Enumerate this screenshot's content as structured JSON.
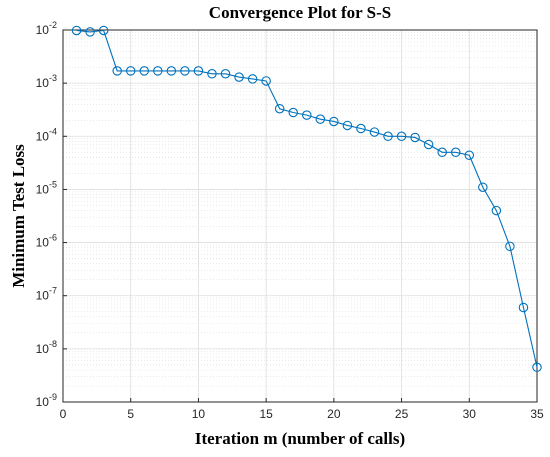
{
  "chart_data": {
    "type": "line",
    "title": "Convergence Plot for S-S",
    "xlabel": "Iteration m (number of calls)",
    "ylabel": "Minimum Test Loss",
    "xlim": [
      0,
      35
    ],
    "ylim": [
      1e-09,
      0.01
    ],
    "yscale": "log",
    "grid": true,
    "minor_grid": true,
    "xticks": [
      0,
      5,
      10,
      15,
      20,
      25,
      30,
      35
    ],
    "yticks": [
      -9,
      -8,
      -7,
      -6,
      -5,
      -4,
      -3,
      -2
    ],
    "ytick_base": "10",
    "series": [
      {
        "color": "#0072BD",
        "marker": "circle",
        "x": [
          1,
          2,
          3,
          4,
          5,
          6,
          7,
          8,
          9,
          10,
          11,
          12,
          13,
          14,
          15,
          16,
          17,
          18,
          19,
          20,
          21,
          22,
          23,
          24,
          25,
          26,
          27,
          28,
          29,
          30,
          31,
          32,
          33,
          34,
          35
        ],
        "y": [
          0.0098,
          0.0092,
          0.0098,
          0.0017,
          0.0017,
          0.0017,
          0.0017,
          0.0017,
          0.0017,
          0.0017,
          0.0015,
          0.0015,
          0.0013,
          0.0012,
          0.0011,
          0.00033,
          0.00028,
          0.00025,
          0.00021,
          0.00019,
          0.00016,
          0.00014,
          0.00012,
          0.0001,
          0.0001,
          9.5e-05,
          7e-05,
          5e-05,
          5e-05,
          4.4e-05,
          1.1e-05,
          4e-06,
          8.5e-07,
          6e-08,
          4.5e-09
        ]
      }
    ]
  }
}
